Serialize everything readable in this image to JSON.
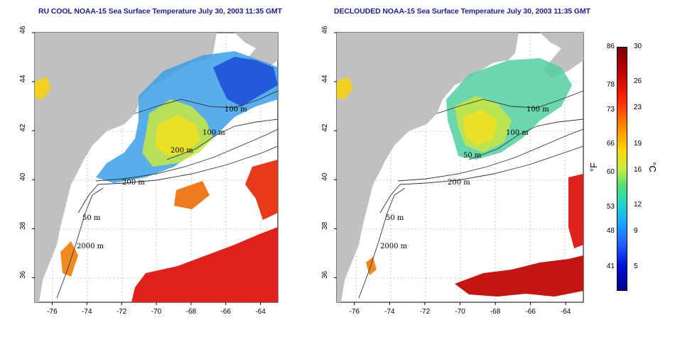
{
  "left_panel": {
    "title": "RU COOL NOAA-15 Sea Surface Temperature July 30, 2003 11:35 GMT",
    "contour_labels": [
      "100 m",
      "100 m",
      "200 m",
      "200 m",
      "50 m",
      "2000 m"
    ]
  },
  "right_panel": {
    "title": "DECLOUDED NOAA-15 Sea Surface Temperature July 30, 2003 11:35 GMT",
    "contour_labels": [
      "100 m",
      "100 m",
      "50 m",
      "200 m",
      "50 m",
      "2000 m"
    ]
  },
  "axes": {
    "x_ticks": [
      "-76",
      "-74",
      "-72",
      "-70",
      "-68",
      "-66",
      "-64"
    ],
    "y_ticks": [
      "46",
      "44",
      "42",
      "40",
      "38",
      "36"
    ]
  },
  "colorbar": {
    "fahrenheit_ticks": [
      "86",
      "78",
      "73",
      "66",
      "60",
      "53",
      "48",
      "41"
    ],
    "celsius_ticks": [
      "30",
      "26",
      "23",
      "19",
      "16",
      "12",
      "9",
      "5"
    ],
    "unit_f": "°F",
    "unit_c": "°C"
  },
  "colors": {
    "land": "#c0c0c0",
    "ocean": "#ffffff",
    "title": "#1b1b9a",
    "warm": "#e0201a",
    "cool": "#2c70e8"
  }
}
